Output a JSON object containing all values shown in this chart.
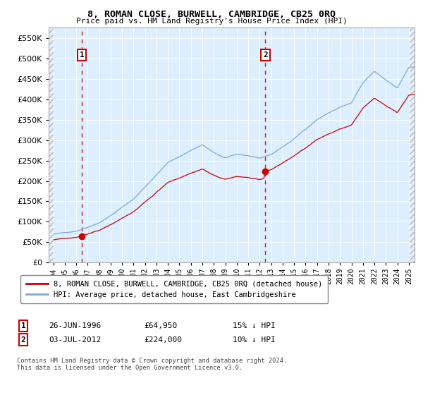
{
  "title": "8, ROMAN CLOSE, BURWELL, CAMBRIDGE, CB25 0RQ",
  "subtitle": "Price paid vs. HM Land Registry's House Price Index (HPI)",
  "legend_line1": "8, ROMAN CLOSE, BURWELL, CAMBRIDGE, CB25 0RQ (detached house)",
  "legend_line2": "HPI: Average price, detached house, East Cambridgeshire",
  "annotation1_date": "26-JUN-1996",
  "annotation1_price": "£64,950",
  "annotation1_hpi": "15% ↓ HPI",
  "annotation2_date": "03-JUL-2012",
  "annotation2_price": "£224,000",
  "annotation2_hpi": "10% ↓ HPI",
  "footer": "Contains HM Land Registry data © Crown copyright and database right 2024.\nThis data is licensed under the Open Government Licence v3.0.",
  "sale1_year": 1996.5,
  "sale1_value": 64950,
  "sale2_year": 2012.5,
  "sale2_value": 224000,
  "hpi_color": "#7aaadd",
  "price_color": "#cc0000",
  "vline_color": "#cc0000",
  "background_color": "#ddeeff",
  "ylim_min": 0,
  "ylim_max": 575000,
  "xlim_min": 1993.6,
  "xlim_max": 2025.5
}
